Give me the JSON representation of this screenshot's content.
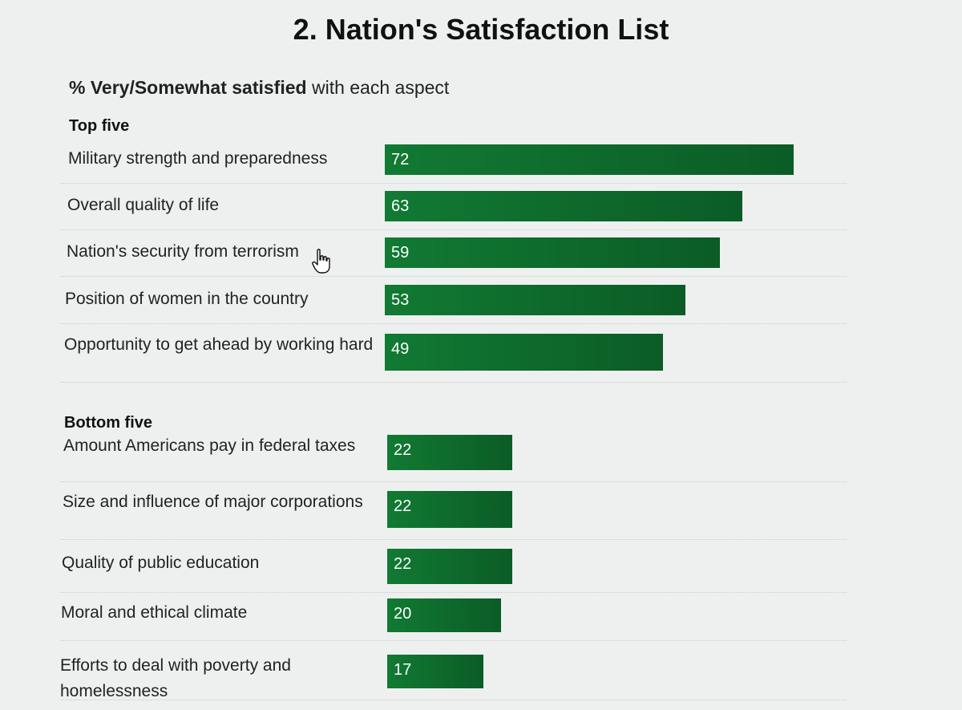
{
  "title": "2. Nation's Satisfaction List",
  "subtitle": {
    "bold": "% Very/Somewhat satisfied",
    "rest": " with each aspect"
  },
  "colors": {
    "bar": "#117a33",
    "bar_dark": "#0b5c26"
  },
  "chart_data": {
    "type": "bar",
    "orientation": "horizontal",
    "title": "2. Nation's Satisfaction List",
    "subtitle": "% Very/Somewhat satisfied with each aspect",
    "groups": [
      {
        "label": "Top five",
        "items": [
          {
            "label": "Military strength and preparedness",
            "value": 72
          },
          {
            "label": "Overall quality of life",
            "value": 63
          },
          {
            "label": "Nation's security from terrorism",
            "value": 59
          },
          {
            "label": "Position of women in the country",
            "value": 53
          },
          {
            "label": "Opportunity to get ahead by working hard",
            "value": 49
          }
        ]
      },
      {
        "label": "Bottom five",
        "items": [
          {
            "label": "Amount Americans pay in federal taxes",
            "value": 22
          },
          {
            "label": "Size and influence of major corporations",
            "value": 22
          },
          {
            "label": "Quality of public education",
            "value": 22
          },
          {
            "label": "Moral and ethical climate",
            "value": 20
          },
          {
            "label": "Efforts to deal with poverty and homelessness",
            "value": 17
          }
        ]
      }
    ],
    "xlim": [
      0,
      72
    ],
    "grid": false,
    "legend": "none"
  }
}
